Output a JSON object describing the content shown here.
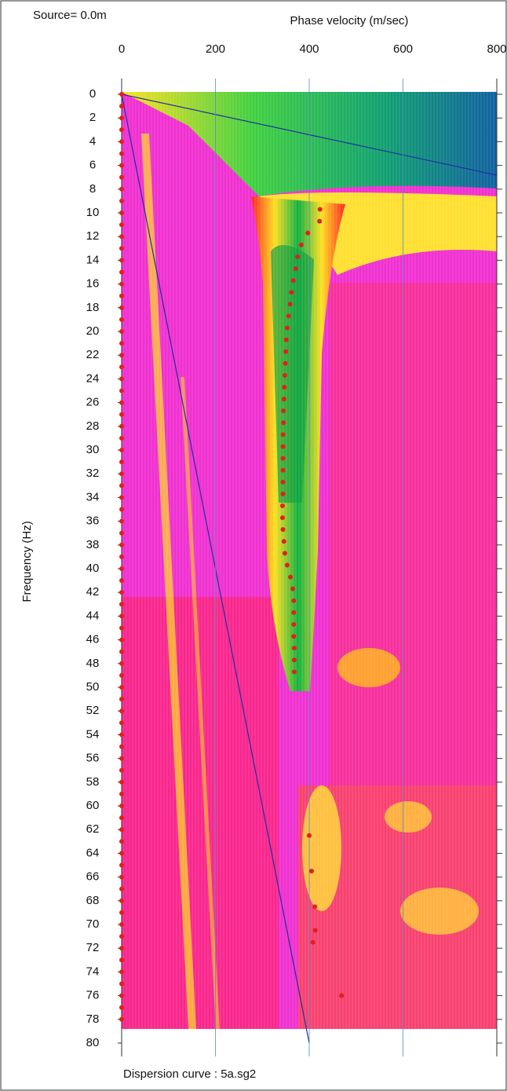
{
  "chart_data": {
    "type": "scatter",
    "source_label": "Source= 0.0m",
    "title": "Phase velocity (m/sec)",
    "y_label": "Frequency (Hz)",
    "caption": "Dispersion curve : 5a.sg2",
    "xlim": [
      0,
      800
    ],
    "xticks": [
      0,
      200,
      400,
      600,
      800
    ],
    "ylim": [
      0,
      80
    ],
    "y_inverted": true,
    "yticks": [
      0,
      2,
      4,
      6,
      8,
      10,
      12,
      14,
      16,
      18,
      20,
      22,
      24,
      26,
      28,
      30,
      32,
      34,
      36,
      38,
      40,
      42,
      44,
      46,
      48,
      50,
      52,
      54,
      56,
      58,
      60,
      62,
      64,
      66,
      68,
      70,
      72,
      74,
      76,
      78,
      80
    ],
    "grid": true,
    "series": [
      {
        "color": "#e0201c",
        "x": [
          423,
          422,
          397,
          383,
          375,
          371,
          366,
          362,
          359,
          356,
          353,
          351,
          350,
          349,
          348,
          347,
          346,
          345,
          345,
          344,
          344,
          344,
          344,
          344,
          344,
          343,
          343,
          344,
          346,
          348,
          353,
          360,
          365,
          367,
          367,
          367,
          367,
          368,
          368,
          368,
          400,
          405,
          412,
          413,
          408,
          469
        ],
        "values": [
          9.7,
          10.7,
          11.7,
          12.7,
          13.7,
          14.7,
          15.7,
          16.7,
          17.7,
          18.7,
          19.7,
          20.7,
          21.7,
          22.7,
          23.7,
          24.7,
          25.7,
          26.7,
          27.7,
          28.7,
          29.7,
          30.7,
          31.7,
          32.7,
          33.7,
          34.7,
          35.7,
          36.7,
          37.7,
          38.7,
          39.7,
          40.7,
          41.7,
          42.7,
          43.7,
          44.7,
          45.7,
          46.7,
          47.7,
          48.7,
          62.5,
          65.5,
          68.5,
          70.5,
          71.5,
          76
        ]
      },
      {
        "color": "#e0201c",
        "x": [
          0,
          0,
          0,
          0,
          0,
          0,
          0,
          0,
          0,
          0,
          0,
          0,
          0,
          0,
          0,
          0,
          0,
          0,
          0,
          0,
          0,
          0,
          0,
          0,
          0,
          0,
          0,
          0,
          0,
          0,
          0,
          0,
          0,
          0,
          0,
          0,
          0,
          0,
          0,
          0,
          0,
          0,
          0,
          0,
          0,
          0,
          0,
          0,
          0,
          0,
          0,
          0,
          0,
          0,
          0,
          0,
          0,
          0,
          0,
          0,
          0,
          0,
          0,
          0,
          0,
          0,
          0,
          0,
          0,
          0,
          0,
          0,
          0,
          0,
          0,
          0,
          0,
          0,
          0
        ],
        "values": [
          0,
          1,
          2,
          3,
          4,
          5,
          6,
          7,
          8,
          9,
          10,
          11,
          12,
          13,
          14,
          15,
          16,
          17,
          18,
          19,
          20,
          21,
          22,
          23,
          24,
          25,
          26,
          27,
          28,
          29,
          30,
          31,
          32,
          33,
          34,
          35,
          36,
          37,
          38,
          39,
          40,
          41,
          42,
          43,
          44,
          45,
          46,
          47,
          48,
          49,
          50,
          51,
          52,
          53,
          54,
          55,
          56,
          57,
          58,
          59,
          60,
          61,
          62,
          63,
          64,
          65,
          66,
          67,
          68,
          69,
          70,
          71,
          72,
          73,
          74,
          75,
          76,
          77,
          78
        ]
      }
    ]
  }
}
